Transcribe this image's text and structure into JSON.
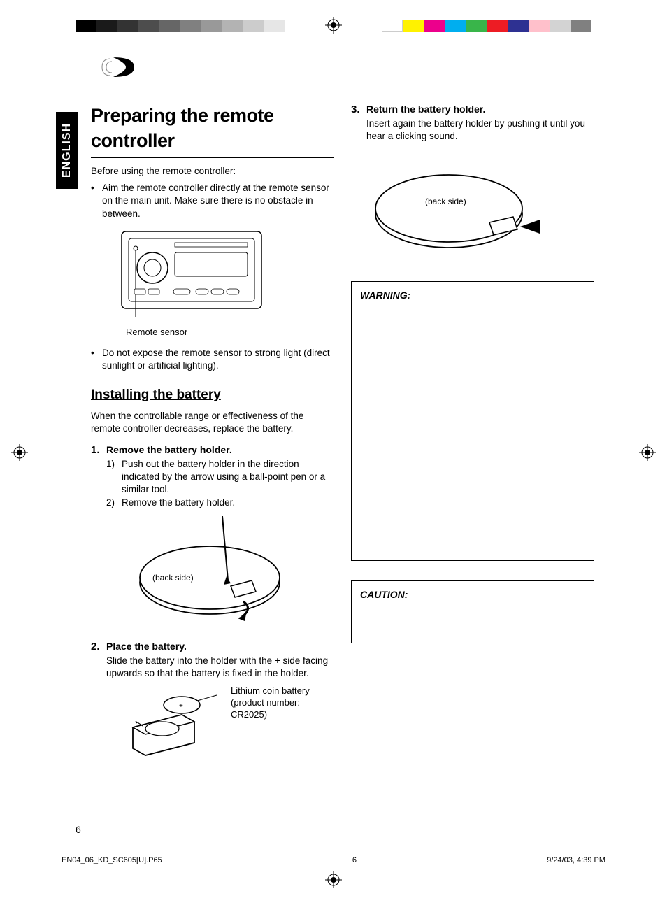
{
  "crop_marks": {
    "color": "#000000"
  },
  "colorbar_left": [
    "#000000",
    "#1a1a1a",
    "#333333",
    "#4d4d4d",
    "#666666",
    "#808080",
    "#999999",
    "#b3b3b3",
    "#cccccc",
    "#e6e6e6"
  ],
  "colorbar_right": [
    "#ffffff",
    "#fff200",
    "#ec008c",
    "#00aeef",
    "#39b54a",
    "#ed1c24",
    "#2e3192",
    "#ffc0cb",
    "#d3d3d3",
    "#808080"
  ],
  "language_tab": "ENGLISH",
  "heading_main": "Preparing the remote controller",
  "intro_line": "Before using the remote controller:",
  "bullets": [
    "Aim the remote controller directly at the remote sensor on the main unit. Make sure there is no obstacle in between."
  ],
  "fig1_caption": "Remote sensor",
  "bullets2": [
    "Do not expose the remote sensor to strong light (direct sunlight or artificial lighting)."
  ],
  "heading_install": "Installing the battery",
  "install_intro": "When the controllable range or effectiveness of the remote controller decreases, replace the battery.",
  "steps": [
    {
      "num": "1.",
      "title": "Remove the battery holder.",
      "subs": [
        {
          "n": "1)",
          "t": "Push out the battery holder in the direction indicated by the arrow using a ball-point pen or a similar tool."
        },
        {
          "n": "2)",
          "t": "Remove the battery holder."
        }
      ],
      "fig_label": "(back side)"
    },
    {
      "num": "2.",
      "title": "Place the battery.",
      "text": "Slide the battery into the holder with the + side facing upwards so that the battery is fixed in the holder.",
      "side_label": "Lithium coin battery (product number: CR2025)"
    },
    {
      "num": "3.",
      "title": "Return the battery holder.",
      "text": "Insert again the battery holder by pushing it until you hear a clicking sound.",
      "fig_label": "(back side)"
    }
  ],
  "warning_title": "WARNING:",
  "caution_title": "CAUTION:",
  "page_number": "6",
  "footer": {
    "file": "EN04_06_KD_SC605[U].P65",
    "page": "6",
    "timestamp": "9/24/03, 4:39 PM"
  },
  "style": {
    "text_color": "#000000",
    "background": "#ffffff",
    "h1_fontsize": 27,
    "h2_fontsize": 19,
    "body_fontsize": 13.5,
    "line_weight": 1.5
  }
}
